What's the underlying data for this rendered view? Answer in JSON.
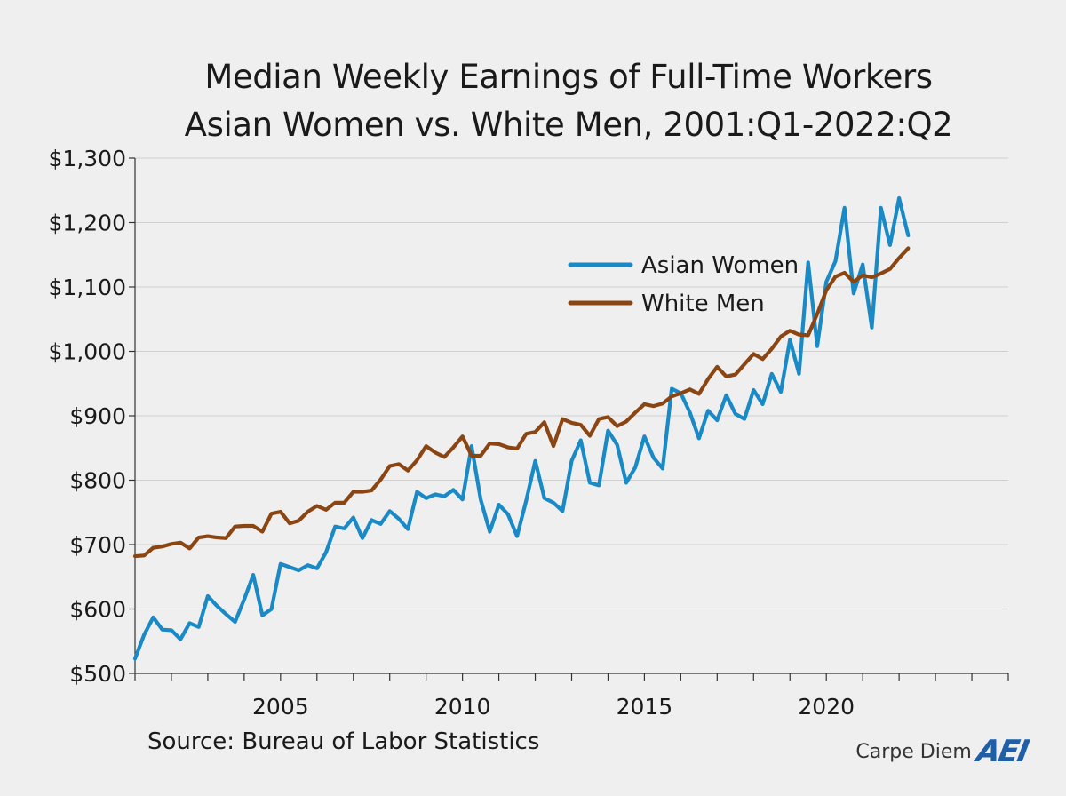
{
  "chart_data": {
    "type": "line",
    "title_lines": [
      "Median Weekly Earnings of Full-Time Workers",
      "Asian Women vs. White Men, 2001:Q1-2022:Q2"
    ],
    "x_start": 2001.0,
    "x_step": 0.25,
    "xlim": [
      2001,
      2025
    ],
    "ylim": [
      500,
      1300
    ],
    "y_ticks": [
      500,
      600,
      700,
      800,
      900,
      1000,
      1100,
      1200,
      1300
    ],
    "y_tick_labels": [
      "$500",
      "$600",
      "$700",
      "$800",
      "$900",
      "$1,000",
      "$1,100",
      "$1,200",
      "$1,300"
    ],
    "x_tick_labels": [
      {
        "value": 2005,
        "label": "2005"
      },
      {
        "value": 2010,
        "label": "2010"
      },
      {
        "value": 2015,
        "label": "2015"
      },
      {
        "value": 2020,
        "label": "2020"
      }
    ],
    "grid": true,
    "legend_position": "inside-right",
    "series": [
      {
        "name": "Asian Women",
        "color": "#1a8ac6",
        "values": [
          523,
          560,
          587,
          568,
          567,
          553,
          578,
          572,
          620,
          605,
          592,
          580,
          615,
          653,
          590,
          600,
          670,
          665,
          660,
          668,
          663,
          688,
          728,
          725,
          742,
          710,
          738,
          732,
          752,
          740,
          724,
          782,
          772,
          778,
          775,
          785,
          770,
          853,
          770,
          720,
          762,
          747,
          713,
          768,
          830,
          772,
          765,
          752,
          830,
          862,
          796,
          792,
          877,
          855,
          796,
          820,
          868,
          835,
          818,
          942,
          935,
          905,
          865,
          908,
          893,
          932,
          903,
          895,
          940,
          918,
          965,
          937,
          1018,
          965,
          1138,
          1008,
          1108,
          1140,
          1223,
          1090,
          1135,
          1037,
          1223,
          1165,
          1238,
          1180
        ]
      },
      {
        "name": "White Men",
        "color": "#8b4513",
        "values": [
          682,
          683,
          695,
          697,
          701,
          703,
          694,
          711,
          713,
          711,
          710,
          728,
          729,
          729,
          720,
          748,
          751,
          733,
          737,
          751,
          760,
          754,
          765,
          765,
          782,
          782,
          784,
          801,
          822,
          825,
          815,
          831,
          853,
          843,
          836,
          851,
          868,
          838,
          838,
          857,
          856,
          851,
          849,
          872,
          875,
          890,
          853,
          895,
          889,
          886,
          869,
          895,
          898,
          884,
          891,
          905,
          918,
          915,
          919,
          930,
          935,
          941,
          934,
          957,
          976,
          961,
          964,
          980,
          996,
          988,
          1004,
          1023,
          1032,
          1026,
          1025,
          1058,
          1095,
          1116,
          1122,
          1108,
          1118,
          1115,
          1121,
          1128,
          1145,
          1160
        ]
      }
    ]
  },
  "source_text": "Source: Bureau of Labor Statistics",
  "brand": {
    "name": "Carpe Diem",
    "logo": "AEI",
    "logo_color": "#1f5fa8"
  }
}
